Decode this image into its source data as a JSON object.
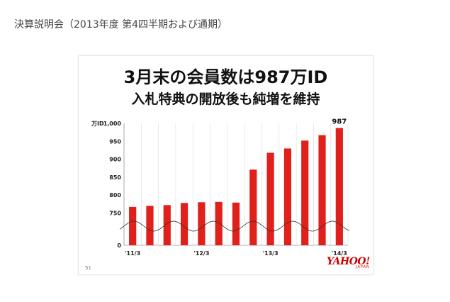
{
  "page": {
    "heading": "決算説明会（2013年度 第4四半期および通期）"
  },
  "slide": {
    "title_line1": "3月末の会員数は987万ID",
    "title_line2": "入札特典の開放後も純増を維持",
    "slide_number": "51",
    "logo_text": "YAHOO!",
    "logo_subtext": "JAPAN"
  },
  "colors": {
    "bar": "#e0201b",
    "wave": "#333333",
    "grid": "#dddddd"
  },
  "chart_data": {
    "type": "bar",
    "unit_label": "万ID",
    "y_tick_labels": [
      "1,000",
      "950",
      "900",
      "850",
      "800",
      "750",
      "0"
    ],
    "y_ticks": [
      1000,
      950,
      900,
      850,
      800,
      750
    ],
    "axis_break": true,
    "ylim": [
      660,
      1000
    ],
    "x_tick_labels": [
      "'11/3",
      "'12/3",
      "'13/3",
      "'14/3"
    ],
    "x_tick_positions": [
      0,
      4,
      8,
      12
    ],
    "values": [
      767,
      770,
      772,
      778,
      780,
      781,
      779,
      871,
      918,
      930,
      952,
      967,
      987
    ],
    "data_labels": [
      {
        "index": 12,
        "text": "987"
      }
    ],
    "grid": "vertical",
    "legend": "none"
  }
}
